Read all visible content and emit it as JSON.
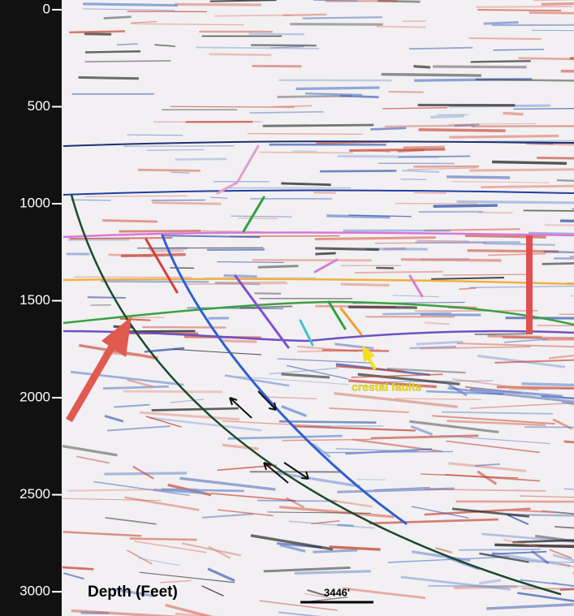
{
  "depth_axis": {
    "label": "Depth (Feet)",
    "ylim": [
      -50,
      3125
    ],
    "ticks": [
      0,
      500,
      1000,
      1500,
      2000,
      2500,
      3000
    ]
  },
  "annotation": "crestal faults",
  "scale_bar": "3446'"
}
